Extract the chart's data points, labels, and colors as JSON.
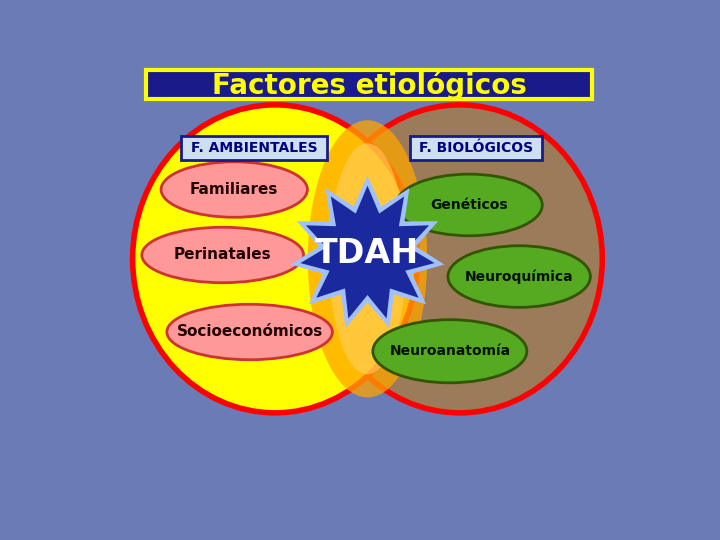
{
  "background_color": "#6B7BB5",
  "title": "Factores etiológicos",
  "title_color": "#FFFF00",
  "title_bg_color": "#1A1A8A",
  "title_border_color": "#FFFF00",
  "left_circle_color": "#FFFF00",
  "left_circle_edge": "#FF0000",
  "right_circle_color": "#9B7B5A",
  "right_circle_edge": "#FF0000",
  "overlap_color": "#FFB020",
  "left_label": "F. AMBIENTALES",
  "right_label": "F. BIOLÓGICOS",
  "left_label_bg": "#CCE0F0",
  "right_label_bg": "#CCE0F0",
  "left_label_border": "#1A1A8A",
  "right_label_border": "#1A1A8A",
  "left_ellipses": [
    "Familiares",
    "Perinatales",
    "Socioeconómicos"
  ],
  "left_ellipse_color": "#FF9999",
  "left_ellipse_edge": "#CC3333",
  "left_text_color": "#220000",
  "right_ellipses": [
    "Genéticos",
    "Neuroquímica",
    "Neuroanatomía"
  ],
  "right_ellipse_color": "#55AA22",
  "right_ellipse_edge": "#335500",
  "right_text_color": "#001100",
  "tdah_text": "TDAH",
  "tdah_star_color": "#1A2A9E",
  "tdah_star_edge": "#A0C0FF",
  "tdah_text_color": "#FFFFFF"
}
